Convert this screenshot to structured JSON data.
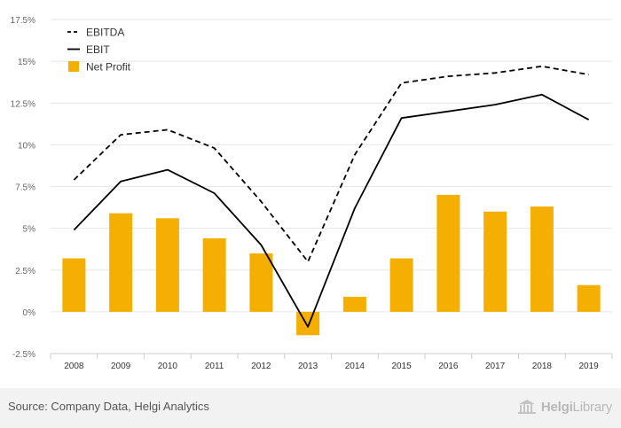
{
  "chart_data": {
    "type": "bar+line",
    "categories": [
      "2008",
      "2009",
      "2010",
      "2011",
      "2012",
      "2013",
      "2014",
      "2015",
      "2016",
      "2017",
      "2018",
      "2019"
    ],
    "series": [
      {
        "name": "EBITDA",
        "type": "line",
        "style": "dashed",
        "color": "#000000",
        "values": [
          7.9,
          10.6,
          10.9,
          9.8,
          6.6,
          3.0,
          9.4,
          13.7,
          14.1,
          14.3,
          14.7,
          14.2
        ]
      },
      {
        "name": "EBIT",
        "type": "line",
        "style": "solid",
        "color": "#000000",
        "values": [
          4.9,
          7.8,
          8.5,
          7.1,
          4.0,
          -0.9,
          6.2,
          11.6,
          12.0,
          12.4,
          13.0,
          11.5
        ]
      },
      {
        "name": "Net Profit",
        "type": "bar",
        "color": "#f5ae02",
        "values": [
          3.2,
          5.9,
          5.6,
          4.4,
          3.5,
          -1.4,
          0.9,
          3.2,
          7.0,
          6.0,
          6.3,
          1.6
        ]
      }
    ],
    "y_ticks": [
      "-2.5%",
      "0%",
      "2.5%",
      "5%",
      "7.5%",
      "10%",
      "12.5%",
      "15%",
      "17.5%"
    ],
    "ylim": [
      -2.5,
      17.5
    ],
    "grid": true,
    "legend": "top-left"
  },
  "footer": {
    "source": "Source: Company Data, Helgi Analytics",
    "brand_bold": "Helgi",
    "brand_light": "Library"
  }
}
